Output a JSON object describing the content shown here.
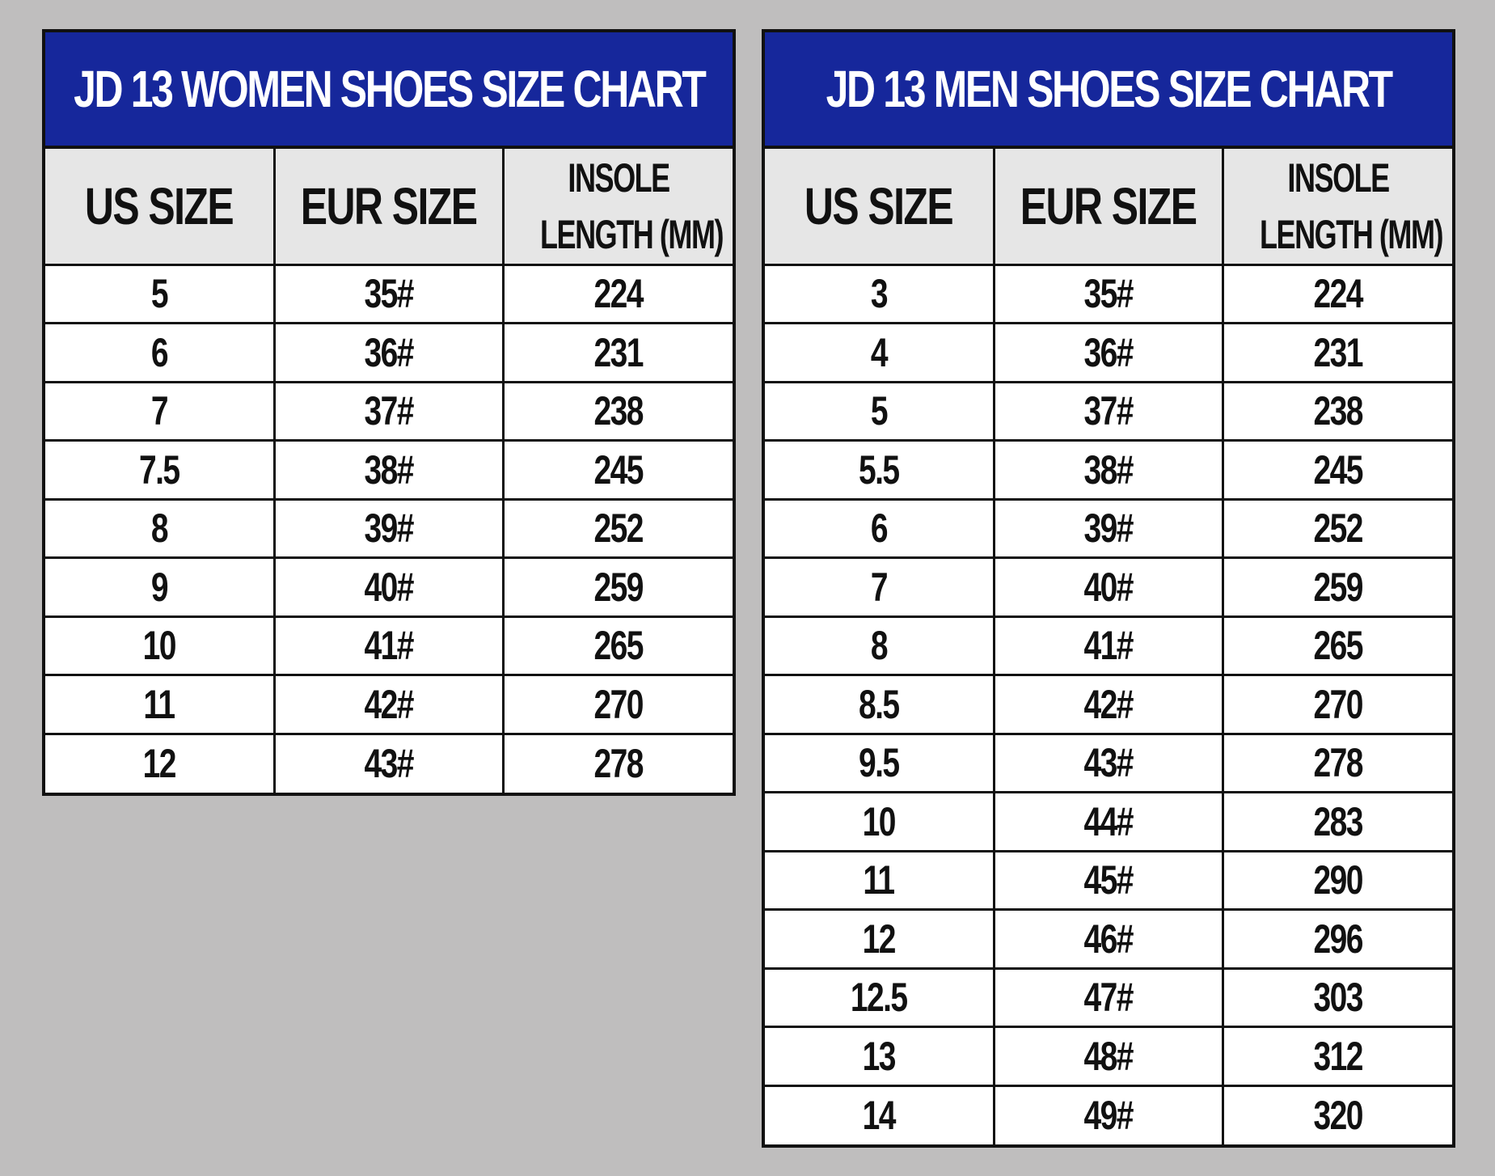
{
  "women": {
    "title": "JD 13 WOMEN SHOES SIZE CHART",
    "headers": {
      "us_size": "US SIZE",
      "eur_size": "EUR SIZE",
      "insole_line1": "INSOLE",
      "insole_line2": "LENGTH (MM)"
    },
    "rows": [
      {
        "us": "5",
        "eur": "35#",
        "insole": "224"
      },
      {
        "us": "6",
        "eur": "36#",
        "insole": "231"
      },
      {
        "us": "7",
        "eur": "37#",
        "insole": "238"
      },
      {
        "us": "7.5",
        "eur": "38#",
        "insole": "245"
      },
      {
        "us": "8",
        "eur": "39#",
        "insole": "252"
      },
      {
        "us": "9",
        "eur": "40#",
        "insole": "259"
      },
      {
        "us": "10",
        "eur": "41#",
        "insole": "265"
      },
      {
        "us": "11",
        "eur": "42#",
        "insole": "270"
      },
      {
        "us": "12",
        "eur": "43#",
        "insole": "278"
      }
    ]
  },
  "men": {
    "title": "JD 13 MEN SHOES SIZE CHART",
    "headers": {
      "us_size": "US SIZE",
      "eur_size": "EUR SIZE",
      "insole_line1": "INSOLE",
      "insole_line2": "LENGTH (MM)"
    },
    "rows": [
      {
        "us": "3",
        "eur": "35#",
        "insole": "224"
      },
      {
        "us": "4",
        "eur": "36#",
        "insole": "231"
      },
      {
        "us": "5",
        "eur": "37#",
        "insole": "238"
      },
      {
        "us": "5.5",
        "eur": "38#",
        "insole": "245"
      },
      {
        "us": "6",
        "eur": "39#",
        "insole": "252"
      },
      {
        "us": "7",
        "eur": "40#",
        "insole": "259"
      },
      {
        "us": "8",
        "eur": "41#",
        "insole": "265"
      },
      {
        "us": "8.5",
        "eur": "42#",
        "insole": "270"
      },
      {
        "us": "9.5",
        "eur": "43#",
        "insole": "278"
      },
      {
        "us": "10",
        "eur": "44#",
        "insole": "283"
      },
      {
        "us": "11",
        "eur": "45#",
        "insole": "290"
      },
      {
        "us": "12",
        "eur": "46#",
        "insole": "296"
      },
      {
        "us": "12.5",
        "eur": "47#",
        "insole": "303"
      },
      {
        "us": "13",
        "eur": "48#",
        "insole": "312"
      },
      {
        "us": "14",
        "eur": "49#",
        "insole": "320"
      }
    ]
  },
  "colors": {
    "title_bar": "#16279b",
    "header_bg": "#e6e6e6",
    "page_bg": "#bfbebe",
    "border": "#111111"
  }
}
